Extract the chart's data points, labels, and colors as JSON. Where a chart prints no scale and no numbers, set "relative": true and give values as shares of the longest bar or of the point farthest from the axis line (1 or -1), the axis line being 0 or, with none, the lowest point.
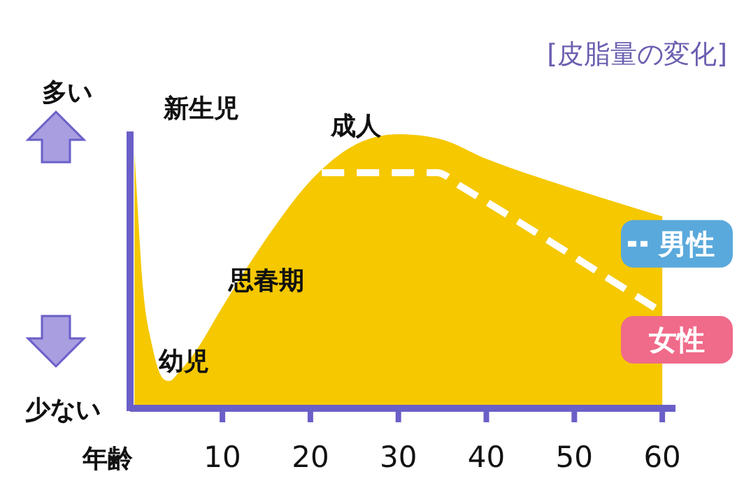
{
  "chart_data": {
    "type": "area",
    "title": "[皮脂量の変化]",
    "xlabel": "年齢",
    "relative": true,
    "xlim": [
      -0.5,
      61.5
    ],
    "xticks": [
      10,
      20,
      30,
      40,
      50,
      60
    ],
    "legend": "right",
    "annotations": [
      {
        "text": "新生児",
        "x": 0,
        "y": 0.93
      },
      {
        "text": "幼児",
        "x": 4,
        "y": 0.1
      },
      {
        "text": "思春期",
        "x": 15,
        "y": 0.62
      },
      {
        "text": "成人",
        "x": 25,
        "y": 0.96
      },
      "多い",
      "少ない"
    ],
    "series": [
      {
        "name": "男性",
        "type": "line",
        "color": "#ffffff",
        "line_style": "dashed",
        "x": [
          21.3,
          34.4,
          37.1,
          60
        ],
        "values": [
          0.86,
          0.86,
          0.81,
          0.35
        ]
      },
      {
        "name": "女性",
        "color": "#f5c800",
        "x": [
          0,
          1,
          2,
          3,
          4,
          5,
          7,
          10,
          15,
          20,
          25,
          30,
          35,
          40,
          50,
          60
        ],
        "values": [
          0.93,
          0.43,
          0.23,
          0.12,
          0.1,
          0.13,
          0.21,
          0.37,
          0.62,
          0.83,
          0.96,
          1.0,
          0.98,
          0.91,
          0.8,
          0.7
        ]
      }
    ]
  }
}
